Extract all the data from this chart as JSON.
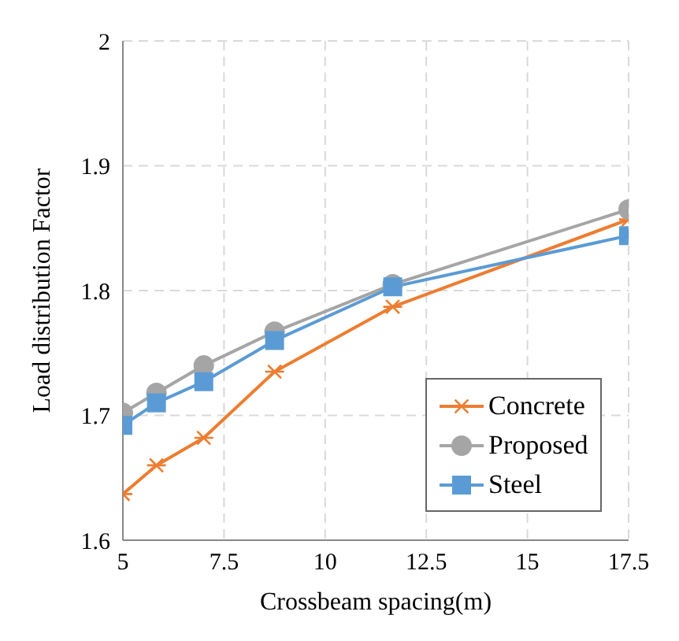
{
  "chart_data": {
    "type": "line",
    "xlabel": "Crossbeam spacing(m)",
    "ylabel": "Load distribution Factor",
    "x": [
      5,
      5.83,
      7,
      8.75,
      11.67,
      17.5
    ],
    "series": [
      {
        "name": "Concrete",
        "color": "#ed7d31",
        "marker": "cross",
        "values": [
          1.637,
          1.66,
          1.682,
          1.735,
          1.787,
          1.857
        ]
      },
      {
        "name": "Proposed",
        "color": "#a5a5a5",
        "marker": "circle",
        "values": [
          1.702,
          1.718,
          1.74,
          1.767,
          1.805,
          1.865
        ]
      },
      {
        "name": "Steel",
        "color": "#5b9bd5",
        "marker": "square",
        "values": [
          1.692,
          1.71,
          1.727,
          1.76,
          1.803,
          1.844
        ]
      }
    ],
    "xlim": [
      5,
      17.5
    ],
    "xticks": [
      5,
      7.5,
      10,
      12.5,
      15,
      17.5
    ],
    "ylim": [
      1.6,
      2
    ],
    "yticks": [
      1.6,
      1.7,
      1.8,
      1.9,
      2
    ],
    "grid": true,
    "legend": "bottom right"
  }
}
